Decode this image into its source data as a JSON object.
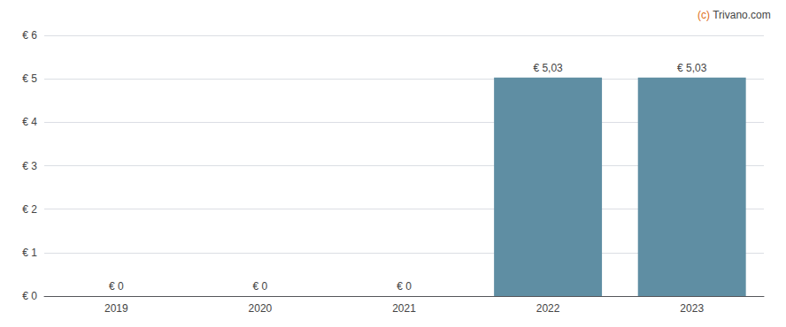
{
  "chart_data": {
    "type": "bar",
    "categories": [
      "2019",
      "2020",
      "2021",
      "2022",
      "2023"
    ],
    "values": [
      0,
      0,
      0,
      5.03,
      5.03
    ],
    "value_labels": [
      "€ 0",
      "€ 0",
      "€ 0",
      "€ 5,03",
      "€ 5,03"
    ],
    "data_labels": true,
    "color": "#5f8ea3",
    "ylim": [
      0,
      6
    ],
    "yticks": [
      {
        "value": 0,
        "label": "€ 0"
      },
      {
        "value": 1,
        "label": "€ 1"
      },
      {
        "value": 2,
        "label": "€ 2"
      },
      {
        "value": 3,
        "label": "€ 3"
      },
      {
        "value": 4,
        "label": "€ 4"
      },
      {
        "value": 5,
        "label": "€ 5"
      },
      {
        "value": 6,
        "label": "€ 6"
      }
    ],
    "grid": true,
    "annotations": [
      {
        "text": "(c)",
        "color": "#e07020"
      },
      {
        "text": " Trivano.com",
        "color": "#444444"
      }
    ]
  }
}
